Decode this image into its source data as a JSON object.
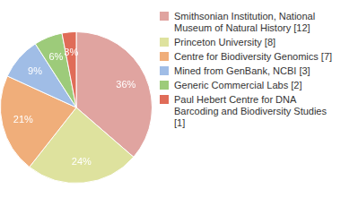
{
  "chart_data": {
    "type": "pie",
    "categories": [
      "Smithsonian Institution, National Museum of Natural History [12]",
      "Princeton University [8]",
      "Centre for Biodiversity Genomics [7]",
      "Mined from GenBank, NCBI [3]",
      "Generic Commercial Labs [2]",
      "Paul Hebert Centre for DNA Barcoding and Biodiversity Studies [1]"
    ],
    "values": [
      36,
      24,
      21,
      9,
      6,
      3
    ],
    "value_labels": [
      "36%",
      "24%",
      "21%",
      "9%",
      "6%",
      "3%"
    ],
    "colors": [
      "#e0a4a0",
      "#dee29e",
      "#f0ae7a",
      "#a0bde6",
      "#9dcb7a",
      "#e06c58"
    ],
    "data_labels": true,
    "legend": "right"
  }
}
